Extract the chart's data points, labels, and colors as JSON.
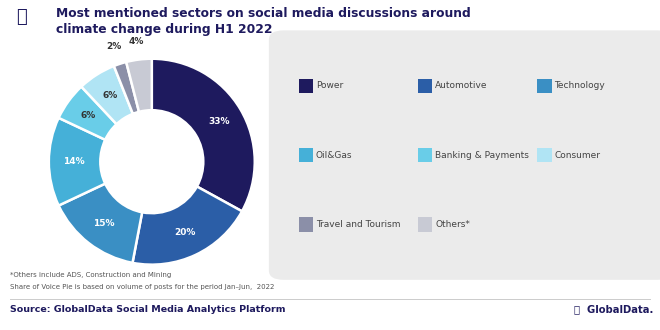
{
  "title_line1": "Most mentioned sectors on social media discussions around",
  "title_line2": "climate change during H1 2022",
  "sectors": [
    "Power",
    "Automotive",
    "Technology",
    "Oil&Gas",
    "Banking & Payments",
    "Consumer",
    "Travel and Tourism",
    "Others*"
  ],
  "values": [
    33,
    20,
    15,
    14,
    6,
    6,
    2,
    4
  ],
  "colors": [
    "#1e1a5e",
    "#2b5ea7",
    "#3a8fc4",
    "#45b0d8",
    "#69cde8",
    "#b0e4f4",
    "#8b8fa8",
    "#c8cad4"
  ],
  "legend_labels": [
    "Power",
    "Automotive",
    "Technology",
    "Oil&Gas",
    "Banking & Payments",
    "Consumer",
    "Travel and Tourism",
    "Others*"
  ],
  "source_text": "Source: GlobalData Social Media Analytics Platform",
  "footnote1": "*Others include ADS, Construction and Mining",
  "footnote2": "Share of Voice Pie is based on volume of posts for the period Jan–Jun,  2022",
  "background_color": "#ffffff",
  "legend_bg_color": "#ebebeb",
  "title_color": "#1e1a5e",
  "label_color_dark": "#ffffff",
  "label_color_light": "#333333"
}
